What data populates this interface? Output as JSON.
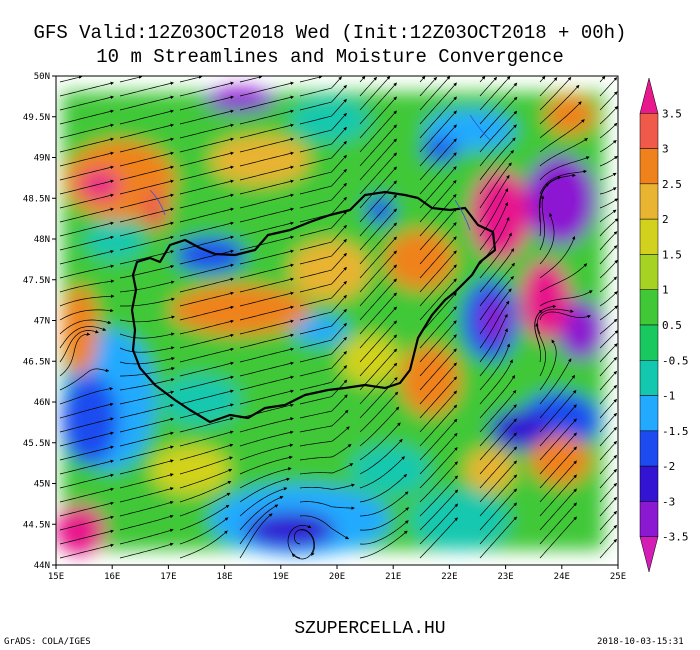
{
  "title_line1": "GFS Valid:12Z03OCT2018 Wed (Init:12Z03OCT2018 + 00h)",
  "title_line2": "10 m Streamlines and Moisture Convergence",
  "axes": {
    "lon_labels": [
      "15E",
      "16E",
      "17E",
      "18E",
      "19E",
      "20E",
      "21E",
      "22E",
      "23E",
      "24E",
      "25E"
    ],
    "lat_labels": [
      "50N",
      "49.5N",
      "49N",
      "48.5N",
      "48N",
      "47.5N",
      "47N",
      "46.5N",
      "46N",
      "45.5N",
      "45N",
      "44.5N",
      "44N"
    ],
    "lon_range": [
      15,
      25
    ],
    "lat_range": [
      44,
      50
    ]
  },
  "colorbar": {
    "labels": [
      "3.5",
      "3",
      "2.5",
      "2",
      "1.5",
      "1",
      "0.5",
      "-0.5",
      "-1",
      "-1.5",
      "-2",
      "-3",
      "-3.5"
    ],
    "colors": [
      "#e8198c",
      "#f05a4b",
      "#f0821e",
      "#e8b432",
      "#d2d21e",
      "#a5d223",
      "#41c837",
      "#19c85f",
      "#14c8af",
      "#23aaff",
      "#1e4bf0",
      "#3214d2",
      "#8c19d2",
      "#d21eb4"
    ]
  },
  "map": {
    "region": "Hungary",
    "ocean_color": "#ffffff",
    "border_color": "#000000",
    "streamline_color": "#000000"
  },
  "footer": {
    "site": "SZUPERCELLA.HU",
    "credit": "GrADS: COLA/IGES",
    "timestamp": "2018-10-03-15:31"
  }
}
